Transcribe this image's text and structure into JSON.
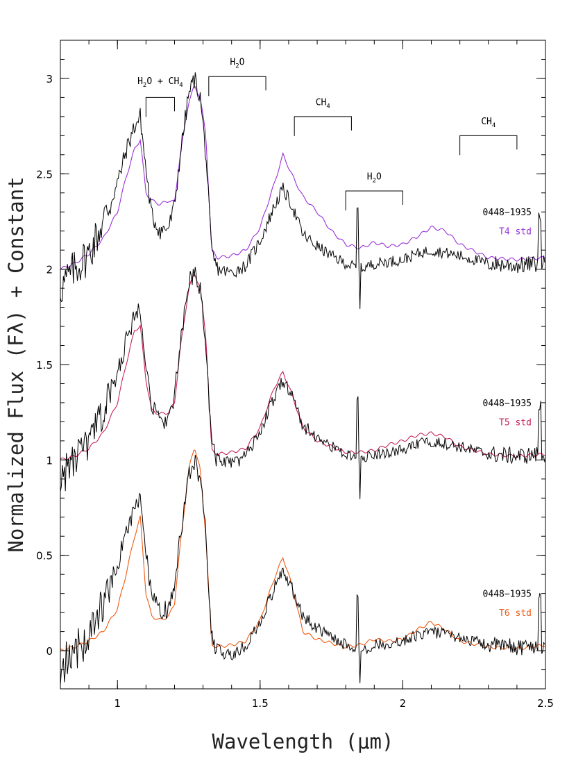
{
  "chart_data": {
    "type": "line",
    "xlabel": "Wavelength (μm)",
    "ylabel": "Normalized Flux (Fλ) + Constant",
    "xlim": [
      0.8,
      2.5
    ],
    "ylim": [
      -0.2,
      3.2
    ],
    "xticks": [
      1,
      1.5,
      2,
      2.5
    ],
    "yticks": [
      0,
      0.5,
      1,
      1.5,
      2,
      2.5,
      3
    ],
    "grid": false,
    "legend": "none",
    "offsets": [
      2,
      1,
      0
    ],
    "panels": [
      {
        "observed_name": "0448−1935",
        "standard_name": "T4 std",
        "standard_color": "#9a30d8",
        "offset": 2
      },
      {
        "observed_name": "0448−1935",
        "standard_name": "T5 std",
        "standard_color": "#c8245a",
        "offset": 1
      },
      {
        "observed_name": "0448−1935",
        "standard_name": "T6 std",
        "standard_color": "#f05a14",
        "offset": 0
      }
    ],
    "observed_profile": {
      "x": [
        0.8,
        0.85,
        0.9,
        0.95,
        1.0,
        1.03,
        1.06,
        1.08,
        1.1,
        1.12,
        1.15,
        1.18,
        1.2,
        1.22,
        1.25,
        1.27,
        1.29,
        1.31,
        1.33,
        1.35,
        1.4,
        1.45,
        1.5,
        1.55,
        1.58,
        1.61,
        1.65,
        1.7,
        1.75,
        1.8,
        1.85,
        1.9,
        2.0,
        2.05,
        2.1,
        2.2,
        2.3,
        2.4,
        2.5
      ],
      "y": [
        -0.1,
        0.0,
        0.08,
        0.25,
        0.45,
        0.62,
        0.75,
        0.8,
        0.52,
        0.28,
        0.2,
        0.22,
        0.33,
        0.6,
        0.92,
        1.0,
        0.9,
        0.6,
        0.08,
        0.0,
        -0.02,
        0.02,
        0.15,
        0.33,
        0.42,
        0.34,
        0.18,
        0.12,
        0.07,
        0.03,
        0.0,
        0.03,
        0.05,
        0.08,
        0.1,
        0.07,
        0.03,
        0.02,
        0.03
      ]
    },
    "standards": [
      {
        "name": "T4 std",
        "x": [
          0.8,
          0.85,
          0.9,
          0.95,
          1.0,
          1.03,
          1.06,
          1.08,
          1.1,
          1.12,
          1.15,
          1.18,
          1.2,
          1.22,
          1.25,
          1.27,
          1.29,
          1.31,
          1.33,
          1.35,
          1.4,
          1.45,
          1.5,
          1.55,
          1.58,
          1.61,
          1.65,
          1.7,
          1.75,
          1.8,
          1.85,
          1.9,
          1.95,
          2.0,
          2.05,
          2.1,
          2.15,
          2.2,
          2.3,
          2.4,
          2.5
        ],
        "y": [
          0.0,
          0.03,
          0.08,
          0.16,
          0.3,
          0.48,
          0.63,
          0.68,
          0.4,
          0.36,
          0.34,
          0.36,
          0.35,
          0.6,
          0.88,
          0.96,
          0.9,
          0.7,
          0.1,
          0.06,
          0.07,
          0.1,
          0.22,
          0.45,
          0.6,
          0.5,
          0.38,
          0.3,
          0.2,
          0.13,
          0.11,
          0.14,
          0.12,
          0.13,
          0.17,
          0.22,
          0.2,
          0.13,
          0.06,
          0.05,
          0.06
        ]
      },
      {
        "name": "T5 std",
        "x": [
          0.8,
          0.85,
          0.9,
          0.95,
          1.0,
          1.03,
          1.06,
          1.08,
          1.1,
          1.12,
          1.15,
          1.18,
          1.2,
          1.22,
          1.25,
          1.27,
          1.29,
          1.31,
          1.33,
          1.35,
          1.4,
          1.45,
          1.5,
          1.55,
          1.58,
          1.61,
          1.65,
          1.7,
          1.75,
          1.8,
          1.85,
          1.9,
          1.95,
          2.0,
          2.05,
          2.1,
          2.15,
          2.2,
          2.3,
          2.4,
          2.5
        ],
        "y": [
          0.0,
          0.02,
          0.06,
          0.14,
          0.3,
          0.5,
          0.68,
          0.7,
          0.42,
          0.26,
          0.24,
          0.25,
          0.3,
          0.58,
          0.9,
          0.98,
          0.9,
          0.65,
          0.05,
          0.03,
          0.04,
          0.06,
          0.17,
          0.38,
          0.46,
          0.35,
          0.17,
          0.1,
          0.07,
          0.04,
          0.04,
          0.05,
          0.08,
          0.1,
          0.13,
          0.14,
          0.12,
          0.07,
          0.03,
          0.02,
          0.03
        ]
      },
      {
        "name": "T6 std",
        "x": [
          0.8,
          0.85,
          0.9,
          0.95,
          1.0,
          1.03,
          1.06,
          1.08,
          1.1,
          1.12,
          1.15,
          1.18,
          1.2,
          1.22,
          1.25,
          1.27,
          1.29,
          1.31,
          1.33,
          1.35,
          1.4,
          1.45,
          1.5,
          1.55,
          1.58,
          1.61,
          1.65,
          1.7,
          1.75,
          1.8,
          1.85,
          1.9,
          1.95,
          2.0,
          2.05,
          2.1,
          2.15,
          2.2,
          2.3,
          2.4,
          2.5
        ],
        "y": [
          0.0,
          0.02,
          0.05,
          0.1,
          0.22,
          0.4,
          0.6,
          0.7,
          0.3,
          0.18,
          0.16,
          0.18,
          0.25,
          0.55,
          0.95,
          1.07,
          0.95,
          0.6,
          0.03,
          0.02,
          0.03,
          0.05,
          0.16,
          0.38,
          0.49,
          0.35,
          0.1,
          0.06,
          0.04,
          0.02,
          0.03,
          0.06,
          0.05,
          0.06,
          0.11,
          0.15,
          0.11,
          0.05,
          0.02,
          0.01,
          0.03
        ]
      }
    ],
    "annotations": [
      {
        "main": "H",
        "sub": "2",
        "tail": "O + CH",
        "sub2": "4",
        "x1": 1.1,
        "x2": 1.2,
        "y": 2.9,
        "label_x": 1.15,
        "label_y": 2.97
      },
      {
        "main": "H",
        "sub": "2",
        "tail": "O",
        "sub2": "",
        "x1": 1.32,
        "x2": 1.52,
        "y": 3.01,
        "label_x": 1.42,
        "label_y": 3.07
      },
      {
        "main": "CH",
        "sub": "4",
        "tail": "",
        "sub2": "",
        "x1": 1.62,
        "x2": 1.82,
        "y": 2.8,
        "label_x": 1.72,
        "label_y": 2.86
      },
      {
        "main": "H",
        "sub": "2",
        "tail": "O",
        "sub2": "",
        "x1": 1.8,
        "x2": 2.0,
        "y": 2.41,
        "label_x": 1.9,
        "label_y": 2.47
      },
      {
        "main": "CH",
        "sub": "4",
        "tail": "",
        "sub2": "",
        "x1": 2.2,
        "x2": 2.4,
        "y": 2.7,
        "label_x": 2.3,
        "label_y": 2.76
      }
    ]
  }
}
